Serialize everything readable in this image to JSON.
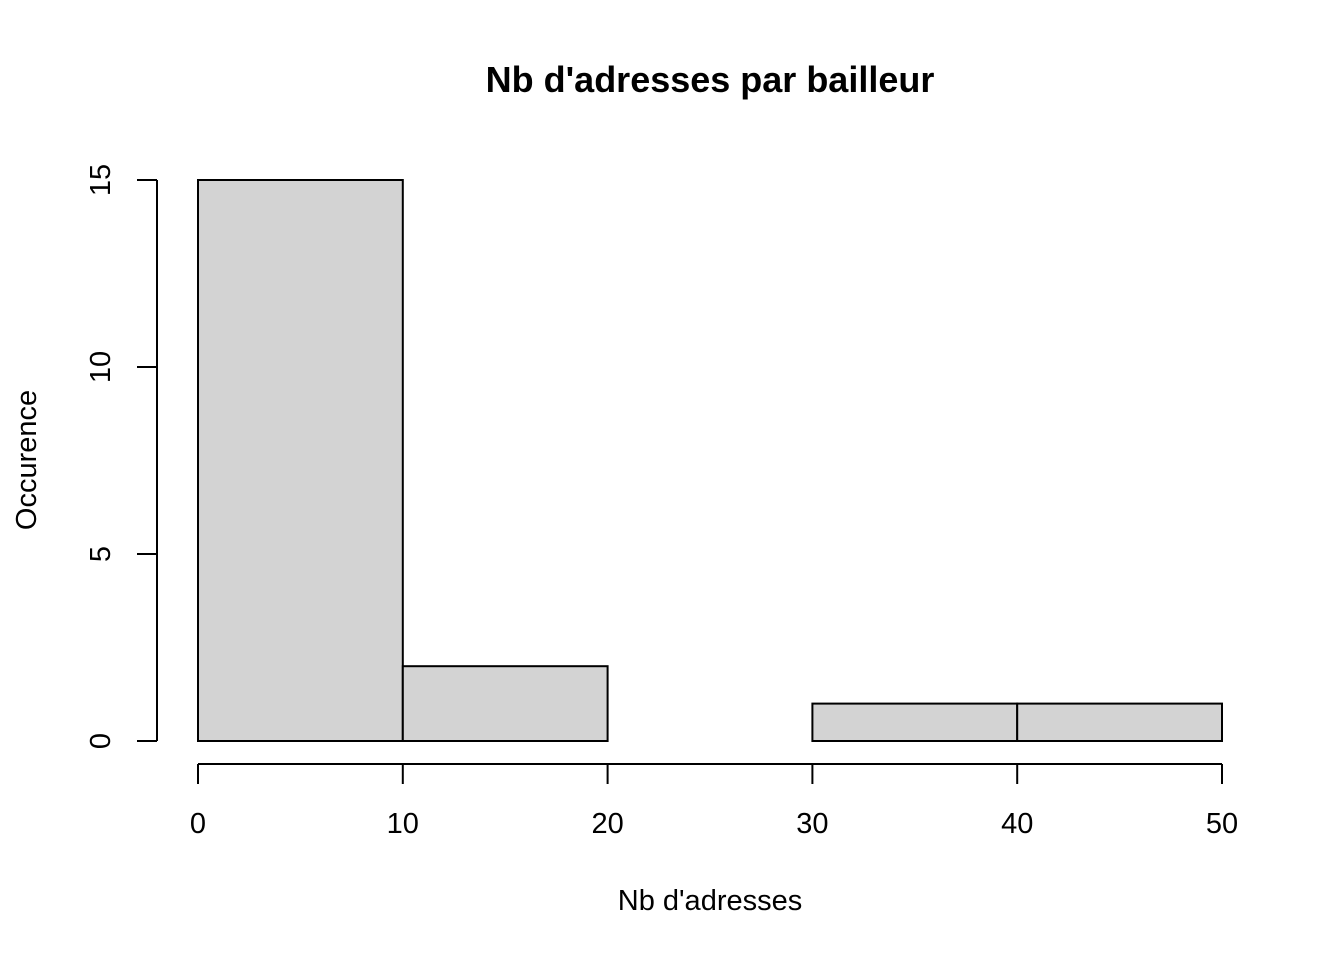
{
  "chart_data": {
    "type": "bar",
    "title": "Nb d'adresses par bailleur",
    "xlabel": "Nb d'adresses",
    "ylabel": "Occurence",
    "bins": [
      {
        "from": 0,
        "to": 10,
        "count": 15
      },
      {
        "from": 10,
        "to": 20,
        "count": 2
      },
      {
        "from": 20,
        "to": 30,
        "count": 0
      },
      {
        "from": 30,
        "to": 40,
        "count": 1
      },
      {
        "from": 40,
        "to": 50,
        "count": 1
      }
    ],
    "xlim": [
      0,
      50
    ],
    "ylim": [
      0,
      15
    ],
    "x_ticks": [
      "0",
      "10",
      "20",
      "30",
      "40",
      "50"
    ],
    "y_ticks": [
      "0",
      "5",
      "10",
      "15"
    ],
    "bar_color": "#d3d3d3",
    "grid": false,
    "legend": "none"
  }
}
